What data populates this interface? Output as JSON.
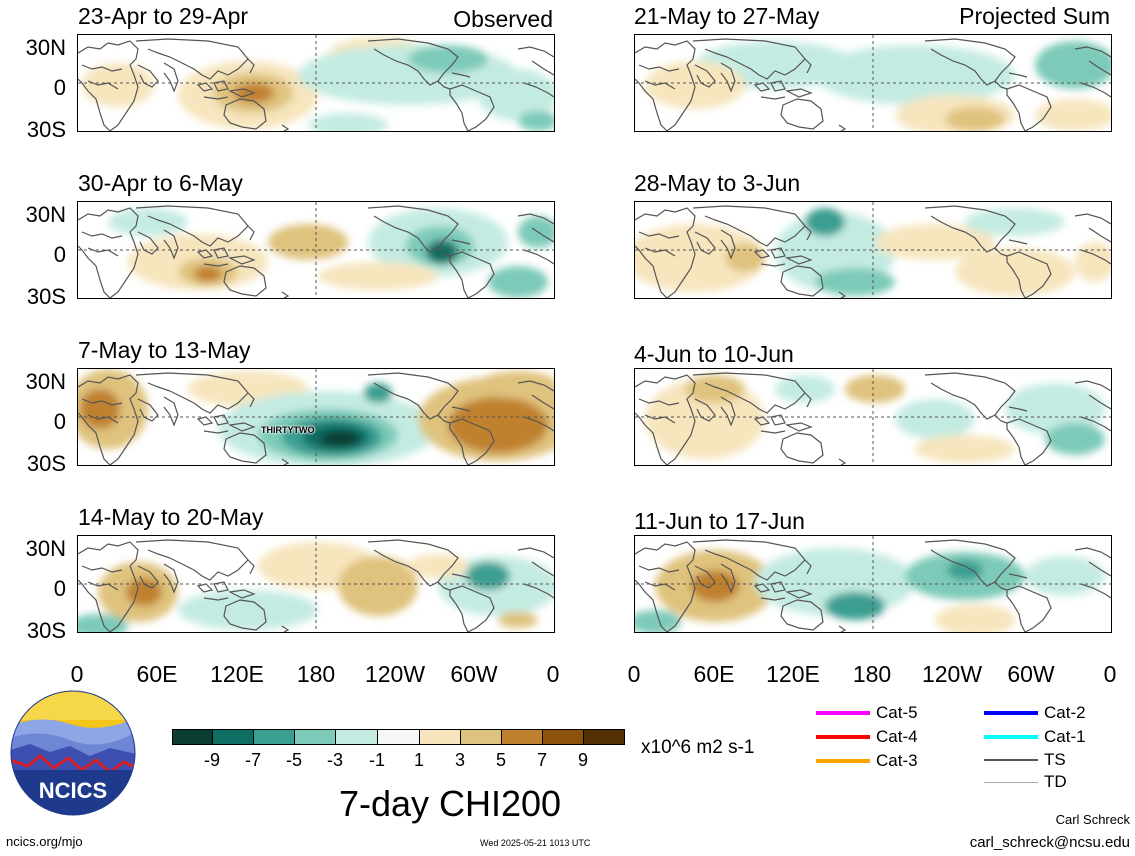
{
  "title": "7-day CHI200",
  "column_headers": {
    "left": "Observed",
    "right": "Projected Sum"
  },
  "panels_left": [
    {
      "period": "23-Apr to 29-Apr"
    },
    {
      "period": "30-Apr to 6-May"
    },
    {
      "period": "7-May to 13-May"
    },
    {
      "period": "14-May to 20-May"
    }
  ],
  "panels_right": [
    {
      "period": "21-May to 27-May"
    },
    {
      "period": "28-May to 3-Jun"
    },
    {
      "period": "4-Jun to 10-Jun"
    },
    {
      "period": "11-Jun to 17-Jun"
    }
  ],
  "lat_labels": [
    "30N",
    "0",
    "30S"
  ],
  "lon_labels": [
    "0",
    "60E",
    "120E",
    "180",
    "120W",
    "60W",
    "0"
  ],
  "storm_label": "THIRTYTWO",
  "colorbar": {
    "unit": "x10^6 m2 s-1",
    "tick_labels": [
      "-9",
      "-7",
      "-5",
      "-3",
      "-1",
      "1",
      "3",
      "5",
      "7",
      "9"
    ],
    "colors": [
      "#0b3d33",
      "#0f6e64",
      "#3a9e91",
      "#7dcab9",
      "#c4ebe2",
      "#f7f7f7",
      "#f6e5bd",
      "#dfc27d",
      "#bf812d",
      "#8c510a",
      "#543005"
    ]
  },
  "legend": [
    {
      "label": "Cat-5",
      "color": "#ff00ff"
    },
    {
      "label": "Cat-4",
      "color": "#ff0000"
    },
    {
      "label": "Cat-3",
      "color": "#ffa500"
    },
    {
      "label": "Cat-2",
      "color": "#0000ff"
    },
    {
      "label": "Cat-1",
      "color": "#00ffff"
    },
    {
      "label": "TS",
      "color": "#555555"
    },
    {
      "label": "TD",
      "color": "#aaaaaa"
    }
  ],
  "logo_text": "NCICS",
  "footer": {
    "left": "ncics.org/mjo",
    "center": "Wed 2025-05-21 1013 UTC",
    "credit_name": "Carl Schreck",
    "credit_email": "carl_schreck@ncsu.edu"
  }
}
